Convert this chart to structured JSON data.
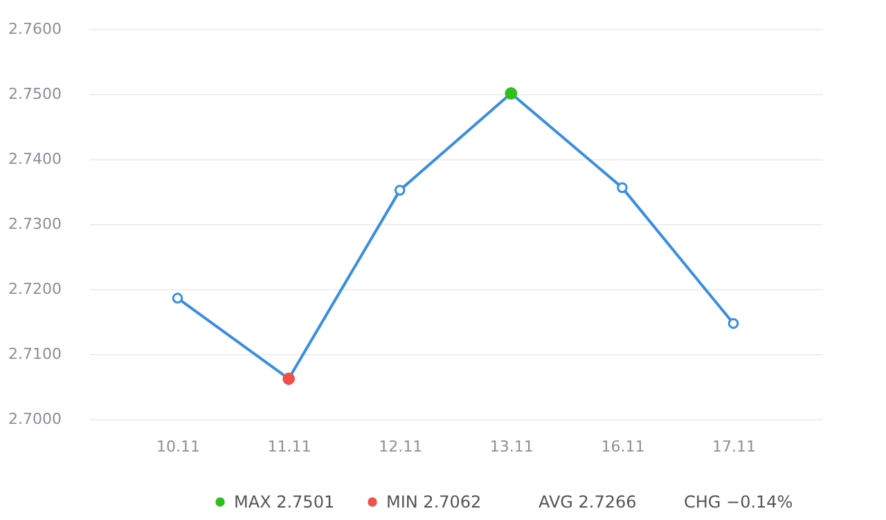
{
  "chart_data": {
    "type": "line",
    "categories": [
      "10.11",
      "11.11",
      "12.11",
      "13.11",
      "16.11",
      "17.11"
    ],
    "series": [
      {
        "color": "#3a8ee0",
        "values": [
          2.7186,
          2.7062,
          2.7352,
          2.7501,
          2.7356,
          2.7147
        ],
        "colors": [
          "#3a8ee0",
          "#f0504a",
          "#3a8ee0",
          "#2fbe1c",
          "#3a8ee0",
          "#3a8ee0"
        ]
      }
    ],
    "ylim": [
      2.7,
      2.76
    ],
    "yticks": [
      {
        "value": 2.7,
        "label": "2.7000"
      },
      {
        "value": 2.71,
        "label": "2.7100"
      },
      {
        "value": 2.72,
        "label": "2.7200"
      },
      {
        "value": 2.73,
        "label": "2.7300"
      },
      {
        "value": 2.74,
        "label": "2.7400"
      },
      {
        "value": 2.75,
        "label": "2.7500"
      },
      {
        "value": 2.76,
        "label": "2.7600"
      }
    ],
    "grid": "y",
    "marker": "circle",
    "line_style": "solid",
    "annotations": [
      "MAX 2.7501",
      "MIN 2.7062",
      "AVG 2.7266",
      "CHG −0.14%"
    ]
  }
}
